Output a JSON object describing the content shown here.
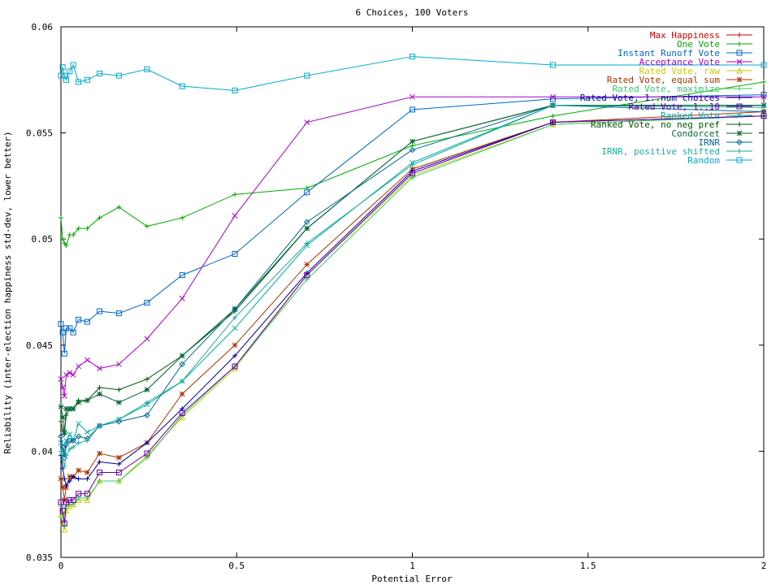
{
  "chart_data": {
    "type": "line",
    "title": "6 Choices, 100 Voters",
    "xlabel": "Potential Error",
    "ylabel": "Reliability (inter-election happiness std-dev, lower better)",
    "xlim": [
      0,
      2
    ],
    "ylim": [
      0.035,
      0.06
    ],
    "xticks": [
      0,
      0.5,
      1,
      1.5,
      2
    ],
    "xtick_labels": [
      "0",
      "0.5",
      "1",
      "1.5",
      "2"
    ],
    "yticks": [
      0.035,
      0.04,
      0.045,
      0.05,
      0.055,
      0.06
    ],
    "ytick_labels": [
      "0.035",
      "0.04",
      "0.045",
      "0.05",
      "0.055",
      "0.06"
    ],
    "grid": false,
    "legend_position": "top-right",
    "x": [
      0,
      0.005,
      0.01,
      0.015,
      0.025,
      0.035,
      0.05,
      0.075,
      0.11,
      0.165,
      0.245,
      0.345,
      0.495,
      0.7,
      1.0,
      1.4,
      2.0
    ],
    "series": [
      {
        "name": "Max Happiness",
        "color": "#cc0000",
        "marker": "plus",
        "values": [
          null,
          null,
          null,
          null,
          null,
          null,
          null,
          null,
          null,
          null,
          null,
          null,
          null,
          null,
          null,
          null,
          null
        ]
      },
      {
        "name": "One Vote",
        "color": "#00aa00",
        "marker": "plus",
        "values": [
          0.051,
          0.05,
          0.0498,
          0.0497,
          0.0502,
          0.0502,
          0.0505,
          0.0505,
          0.051,
          0.0515,
          0.0506,
          0.051,
          0.0521,
          0.0524,
          0.0544,
          0.0558,
          0.0574
        ]
      },
      {
        "name": "Instant Runoff Vote",
        "color": "#0066cc",
        "marker": "square",
        "values": [
          0.046,
          0.0456,
          0.0446,
          0.0458,
          0.0458,
          0.0456,
          0.0462,
          0.0461,
          0.0466,
          0.0465,
          0.047,
          0.0483,
          0.0493,
          0.0522,
          0.0561,
          0.0566,
          0.0568
        ]
      },
      {
        "name": "Acceptance Vote",
        "color": "#aa00cc",
        "marker": "cross",
        "values": [
          0.0434,
          0.043,
          0.0426,
          0.0436,
          0.0437,
          0.0436,
          0.044,
          0.0443,
          0.0439,
          0.0441,
          0.0453,
          0.0472,
          0.0511,
          0.0555,
          0.0567,
          0.0567,
          0.0567
        ]
      },
      {
        "name": "Rated Vote, raw",
        "color": "#cccc00",
        "marker": "triangle",
        "values": [
          0.037,
          0.0366,
          0.0363,
          0.0372,
          0.0374,
          0.0375,
          0.0377,
          0.0377,
          0.0386,
          0.0386,
          0.0398,
          0.0416,
          0.0439,
          0.0483,
          0.053,
          0.0554,
          0.0558
        ]
      },
      {
        "name": "Rated Vote, equal sum",
        "color": "#aa3300",
        "marker": "star",
        "values": [
          0.0387,
          0.0383,
          0.0377,
          0.0383,
          0.0388,
          0.0388,
          0.0391,
          0.039,
          0.0399,
          0.0397,
          0.0404,
          0.0427,
          0.045,
          0.0488,
          0.0533,
          0.0555,
          0.056
        ]
      },
      {
        "name": "Rated Vote, maximize",
        "color": "#33cc66",
        "marker": "plus",
        "values": [
          0.0374,
          0.037,
          0.0365,
          0.0374,
          0.0375,
          0.0375,
          0.0378,
          0.0378,
          0.0386,
          0.0386,
          0.0397,
          0.0417,
          0.044,
          0.0481,
          0.0529,
          0.0554,
          0.0558
        ]
      },
      {
        "name": "Rated Vote, 1..num choices",
        "color": "#000099",
        "marker": "plus",
        "values": [
          0.0398,
          0.0392,
          0.0387,
          0.0384,
          0.0386,
          0.0388,
          0.0387,
          0.0387,
          0.0395,
          0.0394,
          0.0404,
          0.042,
          0.0445,
          0.0484,
          0.0532,
          0.0555,
          0.0558
        ]
      },
      {
        "name": "Rated Vote, 1..10",
        "color": "#6600aa",
        "marker": "square",
        "values": [
          0.0376,
          0.0372,
          0.0366,
          0.0376,
          0.0377,
          0.0377,
          0.038,
          0.038,
          0.039,
          0.039,
          0.0399,
          0.0418,
          0.044,
          0.0483,
          0.0531,
          0.0555,
          0.0558
        ]
      },
      {
        "name": "Ranked Vote",
        "color": "#00aaaa",
        "marker": "cross",
        "values": [
          0.0404,
          0.04,
          0.0398,
          0.0405,
          0.0408,
          0.0405,
          0.0413,
          0.0409,
          0.0412,
          0.0415,
          0.0422,
          0.0433,
          0.0458,
          0.0497,
          0.0536,
          0.0563,
          0.0563
        ]
      },
      {
        "name": "Ranked Vote, no neg pref",
        "color": "#005500",
        "marker": "plus",
        "values": [
          0.0414,
          0.041,
          0.0408,
          0.0417,
          0.042,
          0.042,
          0.0424,
          0.0424,
          0.043,
          0.0429,
          0.0434,
          0.0445,
          0.0466,
          0.0505,
          0.0546,
          0.0563,
          0.0563
        ]
      },
      {
        "name": "Condorcet",
        "color": "#006633",
        "marker": "star",
        "values": [
          0.0421,
          0.0416,
          0.0409,
          0.042,
          0.042,
          0.042,
          0.0423,
          0.0424,
          0.0427,
          0.0423,
          0.0429,
          0.0445,
          0.0467,
          0.0505,
          0.0546,
          0.0563,
          0.0563
        ]
      },
      {
        "name": "IRNR",
        "color": "#006699",
        "marker": "diamond",
        "values": [
          0.0407,
          0.0402,
          0.0397,
          0.0403,
          0.0405,
          0.0405,
          0.0407,
          0.0406,
          0.0412,
          0.0414,
          0.0417,
          0.0441,
          0.0467,
          0.0508,
          0.0542,
          0.0563,
          0.056
        ]
      },
      {
        "name": "IRNR, positive shifted",
        "color": "#22aa99",
        "marker": "plus",
        "values": [
          0.04,
          0.0396,
          0.0393,
          0.0398,
          0.0401,
          0.0402,
          0.0404,
          0.0405,
          0.0412,
          0.0415,
          0.0423,
          0.0433,
          0.0463,
          0.0498,
          0.0535,
          0.0563,
          0.0562
        ]
      },
      {
        "name": "Random",
        "color": "#00aacc",
        "marker": "square",
        "values": [
          0.0577,
          0.0581,
          0.0577,
          0.0575,
          0.0579,
          0.0582,
          0.0574,
          0.0575,
          0.0578,
          0.0577,
          0.058,
          0.0572,
          0.057,
          0.0577,
          0.0586,
          0.0582,
          0.0582
        ]
      }
    ]
  }
}
